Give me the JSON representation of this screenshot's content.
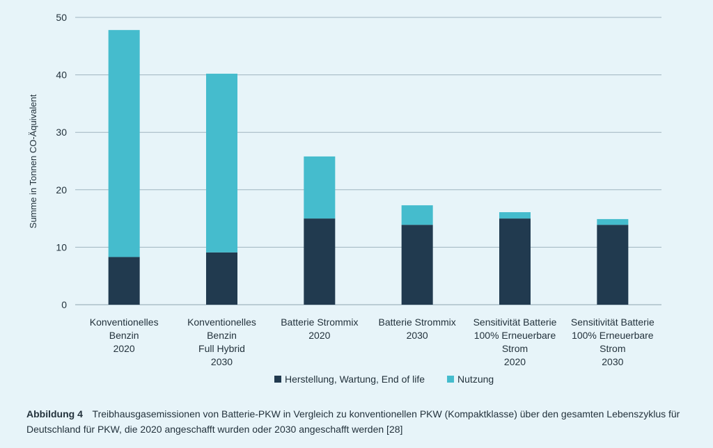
{
  "chart_data": {
    "type": "bar",
    "stacked": true,
    "title": "",
    "xlabel": "",
    "ylabel": "Summe in Tonnen CO-Äquivalent",
    "ylim": [
      0,
      50
    ],
    "yticks": [
      0,
      10,
      20,
      30,
      40,
      50
    ],
    "grid": true,
    "legend_position": "bottom",
    "categories": [
      [
        "Konventionelles",
        "Benzin",
        "2020"
      ],
      [
        "Konventionelles",
        "Benzin",
        "Full Hybrid",
        "2030"
      ],
      [
        "Batterie Strommix",
        "2020"
      ],
      [
        "Batterie Strommix",
        "2030"
      ],
      [
        "Sensitivität Batterie",
        "100% Erneuerbare",
        "Strom",
        "2020"
      ],
      [
        "Sensitivität Batterie",
        "100% Erneuerbare",
        "Strom",
        "2030"
      ]
    ],
    "series": [
      {
        "name": "Herstellung, Wartung, End of life",
        "color": "#213a4f",
        "values": [
          8.3,
          9.1,
          15.0,
          13.9,
          15.0,
          13.9
        ]
      },
      {
        "name": "Nutzung",
        "color": "#45bccd",
        "values": [
          39.5,
          31.1,
          10.8,
          3.4,
          1.1,
          1.0
        ]
      }
    ]
  },
  "caption": {
    "label": "Abbildung 4",
    "text": "Treibhausgasemissionen von Batterie-PKW in Vergleich zu konventionellen PKW (Kompaktklasse) über den gesamten Lebenszyklus für Deutschland für PKW, die 2020 angeschafft wurden oder 2030 angeschafft werden [28]"
  },
  "colors": {
    "background": "#e7f4f9",
    "gridline": "#9fb4bf",
    "text": "#23323c"
  }
}
